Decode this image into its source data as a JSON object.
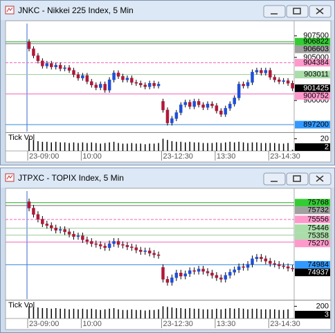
{
  "chart_data": [
    {
      "type": "candlestick",
      "title": "JNKC - Nikkei 225 Index, 5 Min",
      "categories": [
        "23-09:00",
        null,
        null,
        null,
        null,
        null,
        null,
        null,
        null,
        null,
        null,
        null,
        "10:00",
        null,
        null,
        null,
        null,
        null,
        null,
        null,
        null,
        null,
        null,
        null,
        null,
        null,
        null,
        null,
        null,
        null,
        "23-12:30",
        null,
        null,
        null,
        null,
        null,
        null,
        null,
        null,
        null,
        null,
        null,
        "13:30",
        null,
        null,
        null,
        null,
        null,
        null,
        null,
        null,
        null,
        null,
        null,
        "23-14:30",
        null,
        null,
        null,
        null,
        null
      ],
      "open": [
        906800,
        906000,
        905200,
        904600,
        904000,
        904300,
        903900,
        904100,
        903700,
        903800,
        903500,
        903000,
        902600,
        902900,
        902200,
        901800,
        901500,
        901900,
        901200,
        902400,
        903200,
        902800,
        902400,
        902600,
        902100,
        902000,
        901800,
        901600,
        902000,
        901700,
        899900,
        898900,
        897400,
        897900,
        898600,
        899500,
        899800,
        899300,
        899900,
        899500,
        899200,
        899600,
        899400,
        898800,
        898400,
        899100,
        899600,
        900300,
        901900,
        901700,
        902100,
        903300,
        903500,
        903200,
        903500,
        902700,
        902400,
        902200,
        902300,
        902000
      ],
      "high": [
        907100,
        906300,
        905500,
        904900,
        904600,
        904600,
        904400,
        904400,
        904100,
        904100,
        903800,
        903300,
        903200,
        903200,
        902500,
        902100,
        902200,
        902200,
        902700,
        903500,
        903500,
        903100,
        902900,
        902900,
        902400,
        902300,
        902100,
        902300,
        902300,
        902200,
        900200,
        899200,
        898200,
        898900,
        899800,
        900100,
        900100,
        900200,
        900200,
        899800,
        899900,
        899900,
        899700,
        899100,
        899400,
        899900,
        900600,
        902200,
        902200,
        902400,
        903600,
        903800,
        903800,
        903800,
        903800,
        903000,
        902700,
        902600,
        902600,
        902300
      ],
      "low": [
        905700,
        904900,
        904300,
        903700,
        903700,
        903600,
        903600,
        903400,
        903400,
        903200,
        902700,
        902300,
        902300,
        901900,
        901500,
        901200,
        901200,
        900900,
        900900,
        902100,
        902500,
        902100,
        902100,
        901800,
        901700,
        901500,
        901300,
        901300,
        901400,
        901400,
        898600,
        897100,
        897100,
        897600,
        898300,
        899200,
        899000,
        899000,
        899200,
        898900,
        898900,
        899100,
        898500,
        898100,
        898100,
        898800,
        899300,
        900000,
        901400,
        901400,
        901800,
        903000,
        902900,
        902900,
        902400,
        902100,
        901900,
        901900,
        901700,
        901100
      ],
      "close": [
        906000,
        905200,
        904600,
        904000,
        904300,
        903900,
        904100,
        903700,
        903800,
        903500,
        903000,
        902600,
        902900,
        902200,
        901800,
        901500,
        901900,
        901200,
        902400,
        903200,
        902800,
        902400,
        902600,
        902100,
        902000,
        901800,
        901600,
        902000,
        901700,
        901900,
        898900,
        897400,
        897900,
        898600,
        899500,
        899800,
        899300,
        899900,
        899500,
        899200,
        899600,
        899400,
        898800,
        898400,
        899100,
        899600,
        900300,
        901900,
        901700,
        902100,
        903300,
        903500,
        903200,
        903500,
        902700,
        902400,
        902200,
        902300,
        902000,
        901425
      ],
      "ylim": [
        896400,
        909250
      ],
      "yticks": [
        900000,
        905000,
        907500
      ],
      "up_color": "#1f4fd8",
      "down_color": "#b01838",
      "levels": [
        {
          "value": 906822,
          "color": "#22aa22",
          "box": "#33cc33",
          "style": "solid"
        },
        {
          "value": 906603,
          "color": "#707070",
          "box": "#a0a0a0",
          "style": "solid"
        },
        {
          "value": 904384,
          "color": "#ee66bb",
          "box": "#ff99cc",
          "style": "dashed"
        },
        {
          "value": 903011,
          "color": "#99cc99",
          "box": "#aaddaa",
          "style": "solid"
        },
        {
          "value": 900752,
          "color": "#ee66bb",
          "box": "#ff99cc",
          "style": "solid"
        },
        {
          "value": 897200,
          "color": "#3388dd",
          "box": "#3399ff",
          "style": "solid"
        }
      ],
      "volume": {
        "label": "Tick Vol",
        "ylim": [
          0,
          25
        ],
        "yticks": [
          20
        ],
        "values": [
          20,
          18,
          16,
          15,
          15,
          14,
          15,
          14,
          14,
          13,
          14,
          13,
          14,
          13,
          14,
          13,
          12,
          13,
          14,
          15,
          13,
          12,
          12,
          13,
          12,
          12,
          11,
          12,
          12,
          13,
          20,
          18,
          16,
          15,
          15,
          14,
          15,
          14,
          14,
          13,
          13,
          13,
          14,
          13,
          14,
          15,
          14,
          15,
          14,
          13,
          14,
          14,
          13,
          13,
          13,
          13,
          12,
          12,
          13,
          2
        ]
      }
    },
    {
      "type": "candlestick",
      "title": "JTPXC - TOPIX Index, 5 Min",
      "categories": [
        "23-09:00",
        null,
        null,
        null,
        null,
        null,
        null,
        null,
        null,
        null,
        null,
        null,
        "10:00",
        null,
        null,
        null,
        null,
        null,
        null,
        null,
        null,
        null,
        null,
        null,
        null,
        null,
        null,
        null,
        null,
        null,
        "23-12:30",
        null,
        null,
        null,
        null,
        null,
        null,
        null,
        null,
        null,
        null,
        null,
        "13:30",
        null,
        null,
        null,
        null,
        null,
        null,
        null,
        null,
        null,
        null,
        null,
        "23-14:30",
        null,
        null,
        null,
        null,
        null
      ],
      "open": [
        75780,
        75700,
        75620,
        75560,
        75500,
        75480,
        75450,
        75420,
        75430,
        75400,
        75370,
        75340,
        75350,
        75300,
        75280,
        75250,
        75240,
        75220,
        75200,
        75250,
        75280,
        75240,
        75230,
        75210,
        75200,
        75170,
        75150,
        75160,
        75130,
        75110,
        74950,
        74800,
        74760,
        74820,
        74880,
        74840,
        74870,
        74910,
        74900,
        74930,
        74900,
        74880,
        74850,
        74820,
        74800,
        74850,
        74890,
        74920,
        74960,
        74950,
        74990,
        75060,
        75080,
        75060,
        75030,
        75000,
        74990,
        74970,
        74960,
        74940
      ],
      "high": [
        75820,
        75740,
        75660,
        75600,
        75540,
        75520,
        75490,
        75470,
        75470,
        75440,
        75410,
        75390,
        75390,
        75340,
        75320,
        75290,
        75280,
        75260,
        75290,
        75320,
        75320,
        75280,
        75270,
        75250,
        75240,
        75210,
        75200,
        75200,
        75170,
        75150,
        74990,
        74840,
        74860,
        74920,
        74920,
        74910,
        74950,
        74950,
        74970,
        74970,
        74940,
        74920,
        74890,
        74860,
        74890,
        74930,
        74960,
        75000,
        75000,
        75030,
        75100,
        75120,
        75120,
        75100,
        75070,
        75040,
        75030,
        75010,
        75000,
        74980
      ],
      "low": [
        75660,
        75580,
        75520,
        75460,
        75440,
        75410,
        75380,
        75380,
        75360,
        75330,
        75300,
        75300,
        75260,
        75240,
        75210,
        75200,
        75180,
        75160,
        75160,
        75210,
        75200,
        75190,
        75170,
        75160,
        75130,
        75110,
        75110,
        75090,
        75070,
        75060,
        74760,
        74720,
        74720,
        74780,
        74800,
        74800,
        74830,
        74860,
        74860,
        74860,
        74840,
        74810,
        74780,
        74760,
        74760,
        74810,
        74850,
        74880,
        74910,
        74910,
        74950,
        75020,
        75020,
        74990,
        74960,
        74950,
        74930,
        74930,
        74900,
        74897
      ],
      "close": [
        75700,
        75620,
        75560,
        75500,
        75480,
        75450,
        75420,
        75430,
        75400,
        75370,
        75340,
        75350,
        75300,
        75280,
        75250,
        75240,
        75220,
        75200,
        75250,
        75280,
        75240,
        75230,
        75210,
        75200,
        75170,
        75150,
        75160,
        75130,
        75110,
        75100,
        74800,
        74760,
        74820,
        74880,
        74840,
        74870,
        74910,
        74900,
        74930,
        74900,
        74880,
        74850,
        74820,
        74800,
        74850,
        74890,
        74920,
        74960,
        74950,
        74990,
        75060,
        75080,
        75060,
        75030,
        75000,
        74990,
        74970,
        74960,
        74940,
        74937
      ],
      "ylim": [
        74550,
        75950
      ],
      "up_color": "#1f4fd8",
      "down_color": "#b01838",
      "levels": [
        {
          "value": 75768,
          "color": "#22aa22",
          "box": "#33cc33",
          "style": "solid"
        },
        {
          "value": 75732,
          "color": "#707070",
          "box": "#a0a0a0",
          "style": "solid"
        },
        {
          "value": 75556,
          "color": "#ee66bb",
          "box": "#ff99cc",
          "style": "dashed"
        },
        {
          "value": 75446,
          "color": "#99cc99",
          "box": "#aaddaa",
          "style": "solid"
        },
        {
          "value": 75358,
          "color": "#99cc99",
          "box": "#aaddaa",
          "style": "solid"
        },
        {
          "value": 75270,
          "color": "#ee66bb",
          "box": "#ff99cc",
          "style": "solid"
        },
        {
          "value": 74984,
          "color": "#3388dd",
          "box": "#3399ff",
          "style": "solid"
        }
      ],
      "volume": {
        "label": "Tick Vol",
        "ylim": [
          0,
          250
        ],
        "yticks": [
          200
        ],
        "values": [
          200,
          190,
          180,
          170,
          170,
          160,
          170,
          160,
          160,
          150,
          160,
          150,
          160,
          150,
          160,
          150,
          140,
          150,
          160,
          170,
          150,
          140,
          140,
          150,
          140,
          140,
          130,
          140,
          140,
          150,
          200,
          190,
          180,
          170,
          170,
          160,
          170,
          160,
          160,
          150,
          150,
          150,
          160,
          150,
          160,
          170,
          160,
          170,
          160,
          150,
          160,
          160,
          150,
          150,
          150,
          150,
          140,
          140,
          150,
          3
        ]
      }
    }
  ]
}
